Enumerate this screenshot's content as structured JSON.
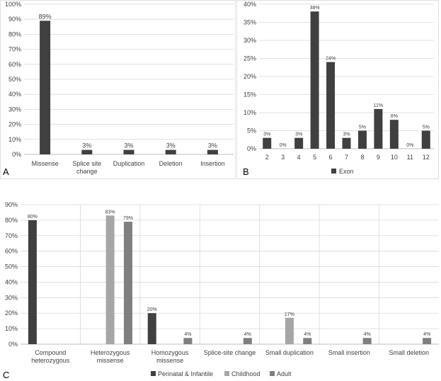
{
  "colors": {
    "dark": "#404040",
    "light": "#a6a6a6",
    "mid": "#7f7f7f"
  },
  "chart_data": [
    {
      "panel": "A",
      "type": "bar",
      "categories": [
        "Missense",
        "Splice site\nchange",
        "Duplication",
        "Deletion",
        "Insertion"
      ],
      "series": [
        {
          "values": [
            89,
            3,
            3,
            3,
            3
          ]
        }
      ],
      "data_labels": [
        "89%",
        "3%",
        "3%",
        "3%",
        "3%"
      ],
      "yticks": [
        "0%",
        "10%",
        "20%",
        "30%",
        "40%",
        "50%",
        "60%",
        "70%",
        "80%",
        "90%",
        "100%"
      ],
      "ylim": [
        0,
        100
      ],
      "grid": true
    },
    {
      "panel": "B",
      "type": "bar",
      "categories": [
        "2",
        "3",
        "4",
        "5",
        "6",
        "7",
        "8",
        "9",
        "10",
        "11",
        "12"
      ],
      "series": [
        {
          "name": "Exon",
          "values": [
            3,
            0,
            3,
            38,
            24,
            3,
            5,
            11,
            8,
            0,
            5
          ]
        }
      ],
      "data_labels": [
        "3%",
        "0%",
        "3%",
        "38%",
        "24%",
        "3%",
        "5%",
        "11%",
        "8%",
        "0%",
        "5%"
      ],
      "yticks": [
        "0%",
        "5%",
        "10%",
        "15%",
        "20%",
        "25%",
        "30%",
        "35%",
        "40%"
      ],
      "ylim": [
        0,
        40
      ],
      "grid": true,
      "legend": "bottom"
    },
    {
      "panel": "C",
      "type": "bar",
      "categories": [
        "Compound\nheterozygous",
        "Heterozygous\nmissense",
        "Homozygous\nmissense",
        "Splice-site change",
        "Small duplication",
        "Small insertion",
        "Small deletion"
      ],
      "series": [
        {
          "name": "Perinatal & Infantile",
          "values": [
            80,
            null,
            20,
            null,
            null,
            null,
            null
          ],
          "labels": [
            "80%",
            "",
            "20%",
            "",
            "",
            "",
            ""
          ]
        },
        {
          "name": "Childhood",
          "values": [
            null,
            83,
            null,
            null,
            17,
            null,
            null
          ],
          "labels": [
            "",
            "83%",
            "",
            "",
            "17%",
            "",
            ""
          ]
        },
        {
          "name": "Adult",
          "values": [
            null,
            79,
            4,
            4,
            4,
            4,
            4
          ],
          "labels": [
            "",
            "79%",
            "4%",
            "4%",
            "4%",
            "4%",
            "4%"
          ]
        }
      ],
      "yticks": [
        "0%",
        "10%",
        "20%",
        "30%",
        "40%",
        "50%",
        "60%",
        "70%",
        "80%",
        "90%"
      ],
      "ylim": [
        0,
        90
      ],
      "grid": true,
      "legend": "bottom"
    }
  ]
}
